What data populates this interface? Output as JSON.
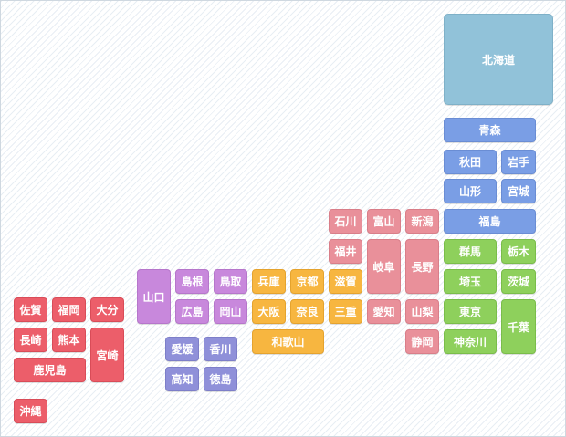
{
  "region_colors": {
    "hokkaido": "#91c2d9",
    "tohoku": "#7a9ee5",
    "kanto": "#8ed05c",
    "chubu": "#e9909a",
    "kinki": "#f7b640",
    "chugoku": "#c888dc",
    "shikoku": "#8f90d9",
    "kyushu": "#ec5e6a"
  },
  "prefectures": {
    "hokkaido": "北海道",
    "aomori": "青森",
    "akita": "秋田",
    "iwate": "岩手",
    "yamagata": "山形",
    "miyagi": "宮城",
    "fukushima": "福島",
    "gunma": "群馬",
    "tochigi": "栃木",
    "saitama": "埼玉",
    "ibaraki": "茨城",
    "tokyo": "東京",
    "chiba": "千葉",
    "kanagawa": "神奈川",
    "ishikawa": "石川",
    "toyama": "富山",
    "niigata": "新潟",
    "fukui": "福井",
    "gifu": "岐阜",
    "nagano": "長野",
    "aichi": "愛知",
    "yamanashi": "山梨",
    "shizuoka": "静岡",
    "shiga": "滋賀",
    "mie": "三重",
    "hyogo": "兵庫",
    "kyoto": "京都",
    "osaka": "大阪",
    "nara": "奈良",
    "wakayama": "和歌山",
    "yamaguchi": "山口",
    "shimane": "島根",
    "tottori": "鳥取",
    "hiroshima": "広島",
    "okayama": "岡山",
    "ehime": "愛媛",
    "kagawa": "香川",
    "kochi": "高知",
    "tokushima": "徳島",
    "saga": "佐賀",
    "fukuoka": "福岡",
    "oita": "大分",
    "nagasaki": "長崎",
    "kumamoto": "熊本",
    "miyazaki": "宮崎",
    "kagoshima": "鹿児島",
    "okinawa": "沖縄"
  }
}
